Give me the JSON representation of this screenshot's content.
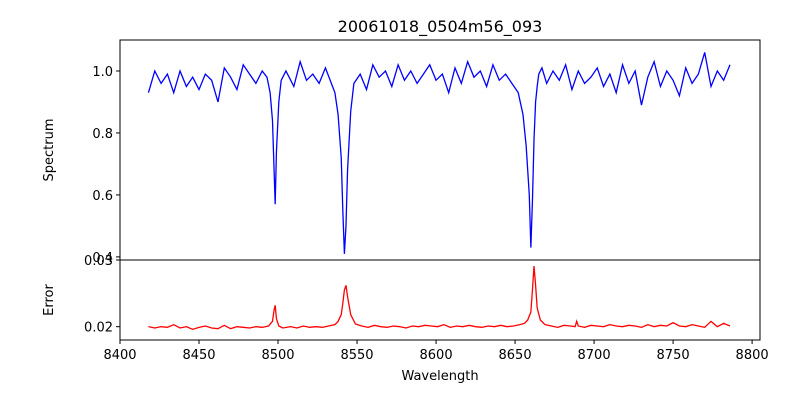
{
  "chart_data": [
    {
      "type": "line",
      "title": "20061018_0504m56_093",
      "xlabel": "",
      "ylabel": "Spectrum",
      "xlim": [
        8400,
        8805
      ],
      "ylim": [
        0.39,
        1.1
      ],
      "yticks": [
        0.4,
        0.6,
        0.8,
        1.0
      ],
      "ytick_labels": [
        "0.4",
        "0.6",
        "0.8",
        "1.0"
      ],
      "grid": false,
      "series": [
        {
          "color": "#0000ff",
          "x": [
            8418,
            8422,
            8426,
            8430,
            8434,
            8438,
            8442,
            8446,
            8450,
            8454,
            8458,
            8462,
            8466,
            8470,
            8474,
            8478,
            8482,
            8486,
            8490,
            8493,
            8495,
            8496.5,
            8497.5,
            8498.2,
            8499,
            8500.5,
            8502,
            8505,
            8510,
            8514,
            8518,
            8522,
            8526,
            8530,
            8533,
            8536,
            8538,
            8540,
            8541,
            8542,
            8543,
            8544,
            8546,
            8548,
            8552,
            8556,
            8560,
            8564,
            8568,
            8572,
            8576,
            8580,
            8584,
            8588,
            8592,
            8596,
            8600,
            8604,
            8608,
            8612,
            8616,
            8620,
            8624,
            8628,
            8632,
            8636,
            8640,
            8644,
            8648,
            8652,
            8655,
            8657,
            8659,
            8660,
            8661,
            8662,
            8663,
            8664,
            8665,
            8667,
            8670,
            8674,
            8678,
            8682,
            8686,
            8690,
            8694,
            8698,
            8702,
            8706,
            8710,
            8714,
            8718,
            8722,
            8726,
            8730,
            8734,
            8738,
            8742,
            8746,
            8750,
            8754,
            8758,
            8762,
            8766,
            8770,
            8774,
            8778,
            8782,
            8786
          ],
          "values": [
            0.93,
            1.0,
            0.96,
            0.99,
            0.93,
            1.0,
            0.95,
            0.98,
            0.94,
            0.99,
            0.97,
            0.9,
            1.01,
            0.98,
            0.94,
            1.02,
            0.99,
            0.96,
            1.0,
            0.98,
            0.93,
            0.84,
            0.68,
            0.57,
            0.74,
            0.9,
            0.97,
            1.0,
            0.95,
            1.03,
            0.97,
            0.99,
            0.96,
            1.01,
            0.97,
            0.93,
            0.86,
            0.72,
            0.55,
            0.41,
            0.5,
            0.68,
            0.87,
            0.96,
            0.99,
            0.94,
            1.02,
            0.98,
            1.0,
            0.95,
            1.02,
            0.97,
            1.0,
            0.96,
            0.99,
            1.02,
            0.97,
            0.99,
            0.93,
            1.01,
            0.96,
            1.03,
            0.98,
            1.0,
            0.95,
            1.02,
            0.97,
            0.99,
            0.96,
            0.93,
            0.86,
            0.76,
            0.6,
            0.43,
            0.58,
            0.78,
            0.9,
            0.95,
            0.99,
            1.01,
            0.96,
            1.0,
            0.97,
            1.02,
            0.94,
            1.0,
            0.96,
            0.98,
            1.01,
            0.95,
            0.99,
            0.93,
            1.02,
            0.96,
            1.0,
            0.89,
            0.98,
            1.03,
            0.95,
            1.0,
            0.97,
            0.92,
            1.01,
            0.96,
            0.99,
            1.06,
            0.95,
            1.0,
            0.97,
            1.02
          ]
        }
      ]
    },
    {
      "type": "line",
      "title": "",
      "xlabel": "Wavelength",
      "ylabel": "Error",
      "xlim": [
        8400,
        8805
      ],
      "ylim": [
        0.018,
        0.03
      ],
      "xticks": [
        8400,
        8450,
        8500,
        8550,
        8600,
        8650,
        8700,
        8750,
        8800
      ],
      "xtick_labels": [
        "8400",
        "8450",
        "8500",
        "8550",
        "8600",
        "8650",
        "8700",
        "8750",
        "8800"
      ],
      "yticks": [
        0.02,
        0.03
      ],
      "ytick_labels": [
        "0.02",
        "0.03"
      ],
      "grid": false,
      "series": [
        {
          "color": "#ff0000",
          "x": [
            8418,
            8422,
            8426,
            8430,
            8434,
            8438,
            8442,
            8446,
            8450,
            8454,
            8458,
            8462,
            8466,
            8470,
            8474,
            8478,
            8482,
            8486,
            8490,
            8494,
            8496.5,
            8497.5,
            8498.2,
            8499,
            8500.5,
            8503,
            8508,
            8512,
            8516,
            8520,
            8524,
            8528,
            8532,
            8536,
            8538,
            8540,
            8541,
            8542,
            8543,
            8544,
            8546,
            8549,
            8553,
            8557,
            8561,
            8565,
            8569,
            8573,
            8577,
            8581,
            8585,
            8589,
            8593,
            8597,
            8601,
            8605,
            8609,
            8613,
            8617,
            8621,
            8625,
            8629,
            8633,
            8637,
            8641,
            8645,
            8649,
            8653,
            8656,
            8658,
            8660,
            8661,
            8662,
            8663,
            8664,
            8666,
            8669,
            8673,
            8677,
            8681,
            8685,
            8688,
            8689,
            8690,
            8694,
            8698,
            8702,
            8706,
            8710,
            8714,
            8718,
            8722,
            8726,
            8730,
            8734,
            8738,
            8742,
            8746,
            8750,
            8754,
            8758,
            8762,
            8766,
            8770,
            8774,
            8778,
            8782,
            8786
          ],
          "values": [
            0.02,
            0.0198,
            0.02,
            0.0199,
            0.0203,
            0.0198,
            0.02,
            0.0196,
            0.0199,
            0.0201,
            0.0198,
            0.0197,
            0.0202,
            0.0197,
            0.02,
            0.0199,
            0.0198,
            0.02,
            0.0199,
            0.0201,
            0.0208,
            0.0225,
            0.0232,
            0.0212,
            0.0201,
            0.0198,
            0.02,
            0.0198,
            0.0201,
            0.0199,
            0.02,
            0.0199,
            0.0201,
            0.0203,
            0.0208,
            0.0218,
            0.0235,
            0.0255,
            0.0262,
            0.0245,
            0.0218,
            0.0204,
            0.0201,
            0.0199,
            0.0202,
            0.02,
            0.0199,
            0.0201,
            0.02,
            0.0198,
            0.0201,
            0.02,
            0.0202,
            0.0201,
            0.02,
            0.0203,
            0.0199,
            0.0201,
            0.02,
            0.0202,
            0.02,
            0.0199,
            0.0201,
            0.02,
            0.0202,
            0.02,
            0.0201,
            0.0203,
            0.0205,
            0.021,
            0.0222,
            0.0255,
            0.0291,
            0.0262,
            0.0228,
            0.021,
            0.0203,
            0.0201,
            0.0199,
            0.0202,
            0.0201,
            0.02,
            0.0208,
            0.0201,
            0.0199,
            0.0202,
            0.0201,
            0.02,
            0.0203,
            0.0201,
            0.02,
            0.0202,
            0.0201,
            0.0199,
            0.0203,
            0.02,
            0.0202,
            0.0201,
            0.0206,
            0.0201,
            0.02,
            0.0203,
            0.0201,
            0.0199,
            0.0208,
            0.02,
            0.0205,
            0.0201
          ]
        }
      ]
    }
  ]
}
